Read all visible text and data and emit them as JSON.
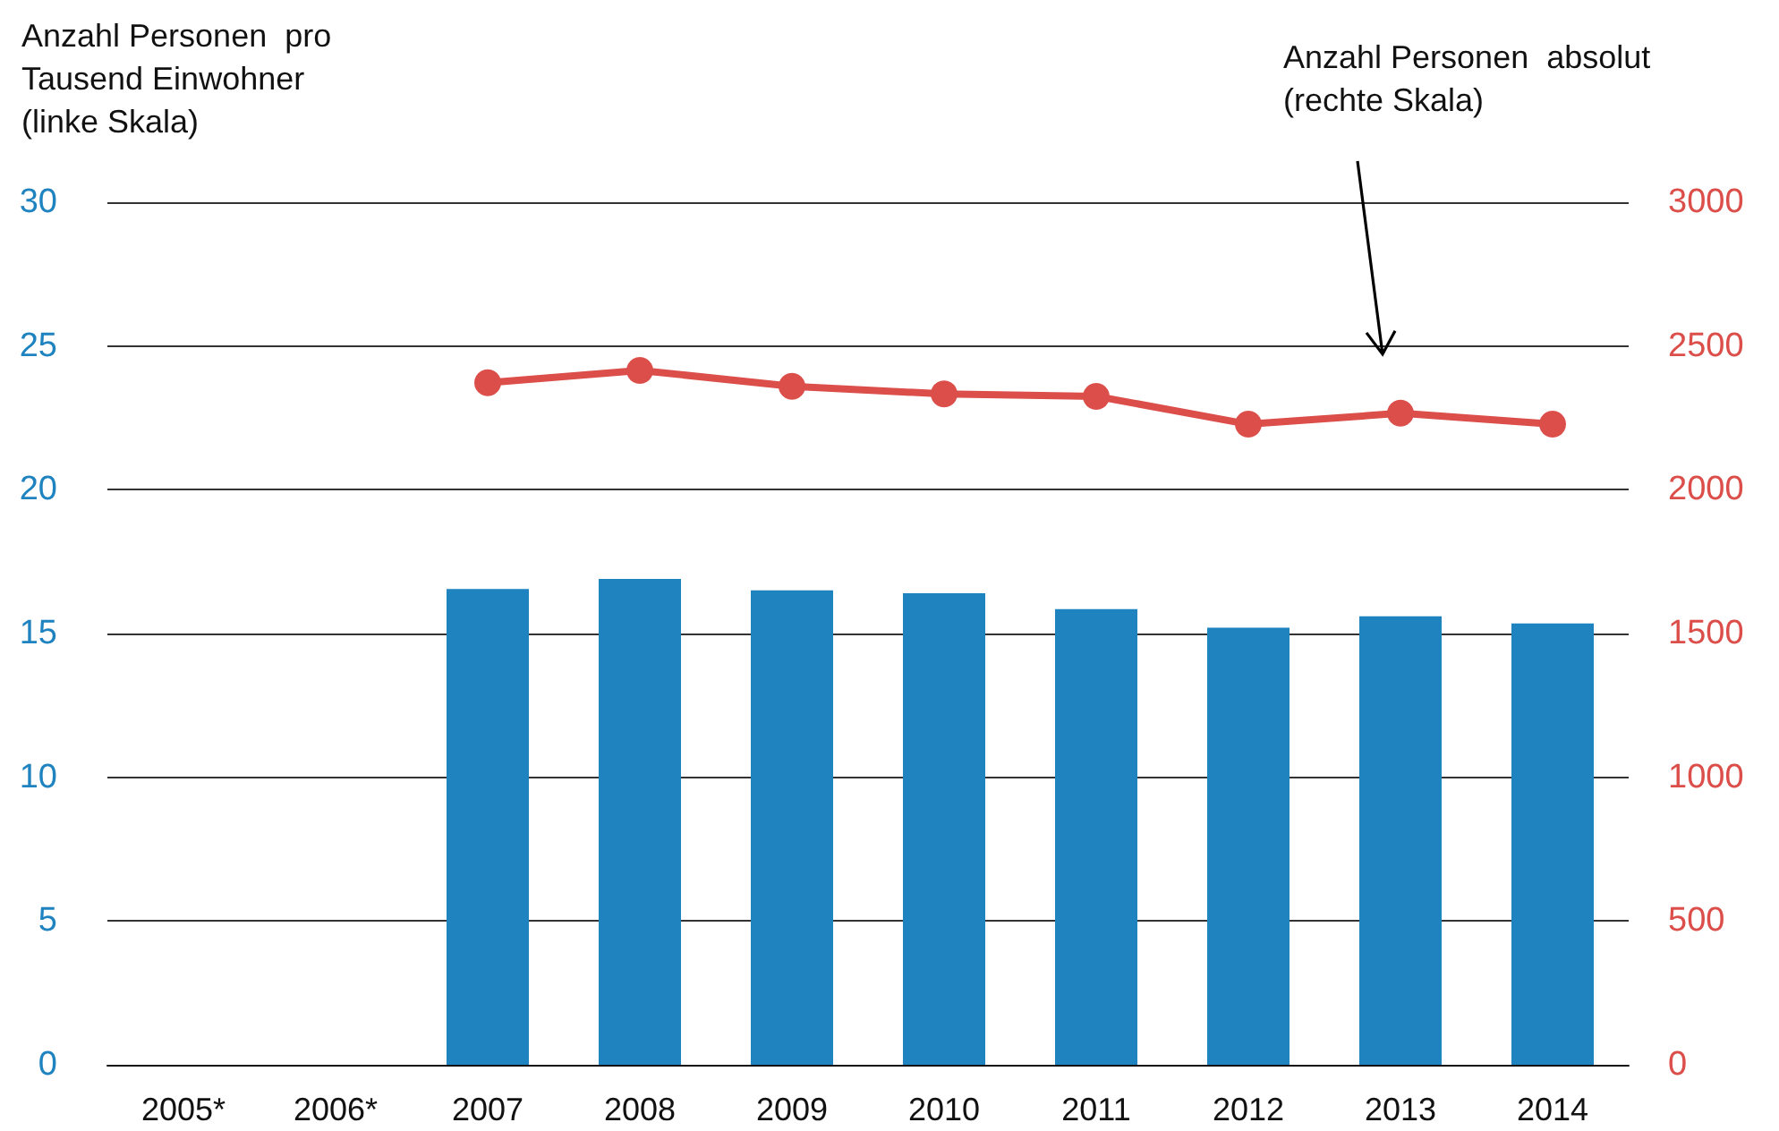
{
  "chart_data": {
    "type": "bar",
    "ylabel": "Anzahl Personen  pro\nTausend Einwohner\n(linke Skala)",
    "y2label": "Anzahl Personen  absolut\n(rechte Skala)",
    "categories": [
      "2005*",
      "2006*",
      "2007",
      "2008",
      "2009",
      "2010",
      "2011",
      "2012",
      "2013",
      "2014"
    ],
    "series": [
      {
        "color": "#1f83c0",
        "values": [
          null,
          null,
          16.55,
          16.9,
          16.5,
          16.4,
          15.85,
          15.2,
          15.6,
          15.35
        ]
      },
      {
        "type": "line",
        "axis": "y2",
        "color": "#dc4e4a",
        "values": [
          null,
          null,
          2372,
          2415,
          2360,
          2333,
          2325,
          2228,
          2266,
          2228
        ]
      }
    ],
    "ylim": [
      0,
      30
    ],
    "yticks": [
      0,
      5,
      10,
      15,
      20,
      25,
      30
    ],
    "y2lim": [
      0,
      3000
    ],
    "y2ticks": [
      0,
      500,
      1000,
      1500,
      2000,
      2500,
      3000
    ],
    "grid": "y",
    "marker": "circle",
    "line_style": "solid"
  }
}
